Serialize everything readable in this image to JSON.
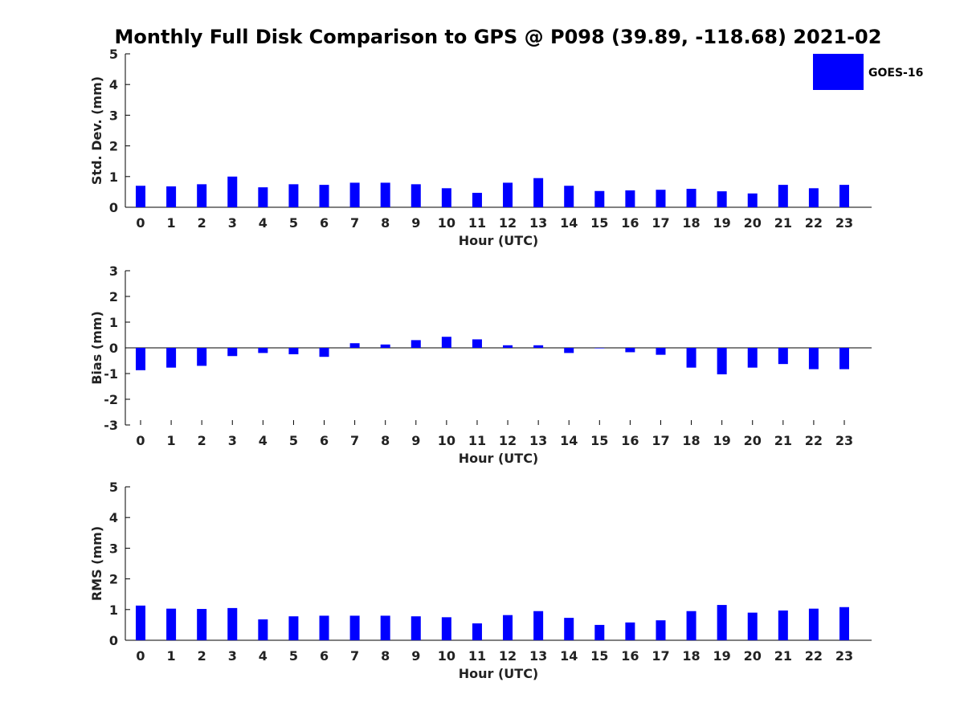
{
  "title": "Monthly Full Disk Comparison to GPS @ P098 (39.89, -118.68) 2021-02",
  "colors": {
    "bar": "#0000ff",
    "axis": "#000000",
    "text": "#222222"
  },
  "legend": {
    "label": "GOES-16",
    "placement": "top-right"
  },
  "chart_data": [
    {
      "type": "bar",
      "xlabel": "Hour (UTC)",
      "ylabel": "Std. Dev. (mm)",
      "ylim": [
        0,
        5
      ],
      "yticks": [
        0,
        1,
        2,
        3,
        4,
        5
      ],
      "categories": [
        "0",
        "1",
        "2",
        "3",
        "4",
        "5",
        "6",
        "7",
        "8",
        "9",
        "10",
        "11",
        "12",
        "13",
        "14",
        "15",
        "16",
        "17",
        "18",
        "19",
        "20",
        "21",
        "22",
        "23"
      ],
      "series": [
        {
          "name": "GOES-16",
          "values": [
            0.7,
            0.68,
            0.75,
            1.0,
            0.65,
            0.75,
            0.73,
            0.8,
            0.8,
            0.75,
            0.62,
            0.47,
            0.8,
            0.95,
            0.7,
            0.53,
            0.55,
            0.57,
            0.6,
            0.52,
            0.45,
            0.73,
            0.62,
            0.73
          ]
        }
      ]
    },
    {
      "type": "bar",
      "xlabel": "Hour (UTC)",
      "ylabel": "Bias (mm)",
      "ylim": [
        -3,
        3
      ],
      "yticks": [
        -3,
        -2,
        -1,
        0,
        1,
        2,
        3
      ],
      "categories": [
        "0",
        "1",
        "2",
        "3",
        "4",
        "5",
        "6",
        "7",
        "8",
        "9",
        "10",
        "11",
        "12",
        "13",
        "14",
        "15",
        "16",
        "17",
        "18",
        "19",
        "20",
        "21",
        "22",
        "23"
      ],
      "series": [
        {
          "name": "GOES-16",
          "values": [
            -0.87,
            -0.77,
            -0.7,
            -0.32,
            -0.2,
            -0.25,
            -0.35,
            0.18,
            0.13,
            0.3,
            0.43,
            0.33,
            0.1,
            0.1,
            -0.2,
            -0.02,
            -0.17,
            -0.27,
            -0.77,
            -1.03,
            -0.77,
            -0.63,
            -0.83,
            -0.83
          ]
        }
      ]
    },
    {
      "type": "bar",
      "xlabel": "Hour (UTC)",
      "ylabel": "RMS (mm)",
      "ylim": [
        0,
        5
      ],
      "yticks": [
        0,
        1,
        2,
        3,
        4,
        5
      ],
      "categories": [
        "0",
        "1",
        "2",
        "3",
        "4",
        "5",
        "6",
        "7",
        "8",
        "9",
        "10",
        "11",
        "12",
        "13",
        "14",
        "15",
        "16",
        "17",
        "18",
        "19",
        "20",
        "21",
        "22",
        "23"
      ],
      "series": [
        {
          "name": "GOES-16",
          "values": [
            1.13,
            1.03,
            1.02,
            1.05,
            0.68,
            0.78,
            0.8,
            0.8,
            0.8,
            0.78,
            0.75,
            0.55,
            0.82,
            0.95,
            0.73,
            0.5,
            0.58,
            0.65,
            0.95,
            1.15,
            0.9,
            0.97,
            1.03,
            1.08
          ]
        }
      ]
    }
  ]
}
